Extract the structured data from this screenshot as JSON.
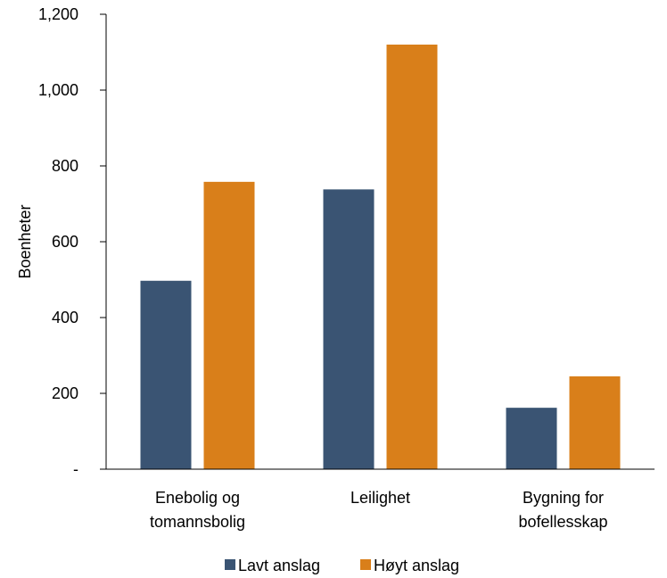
{
  "chart_data": {
    "type": "bar",
    "title": "",
    "xlabel": "",
    "ylabel": "Boenheter",
    "ylim": [
      0,
      1200
    ],
    "yticks": [
      0,
      200,
      400,
      600,
      800,
      1000,
      1200
    ],
    "ytick_labels": [
      "-",
      "200",
      "400",
      "600",
      "800",
      "1,000",
      "1,200"
    ],
    "categories": [
      [
        "Enebolig og",
        "tomannsbolig"
      ],
      [
        "Leilighet"
      ],
      [
        "Bygning for",
        "bofellesskap"
      ]
    ],
    "series": [
      {
        "name": "Lavt anslag",
        "color": "#3a5473",
        "values": [
          497,
          738,
          162
        ]
      },
      {
        "name": "Høyt anslag",
        "color": "#d97f1a",
        "values": [
          758,
          1120,
          245
        ]
      }
    ],
    "grid": false,
    "legend_position": "bottom"
  }
}
